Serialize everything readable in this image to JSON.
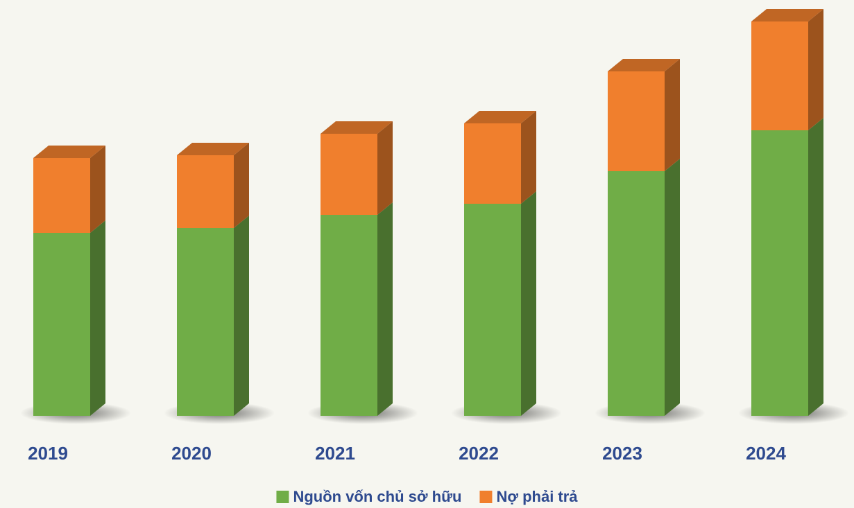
{
  "chart_data": {
    "type": "bar",
    "stacked": true,
    "categories": [
      "2019",
      "2020",
      "2021",
      "2022",
      "2023",
      "2024"
    ],
    "series": [
      {
        "name": "Nguồn vốn chủ sở hữu",
        "color": "#70ad47",
        "values": [
          264,
          271,
          290,
          306,
          353,
          412
        ]
      },
      {
        "name": "Nợ phải trả",
        "color": "#f07f2d",
        "values": [
          108,
          105,
          117,
          116,
          144,
          157
        ]
      }
    ],
    "legend": "bottom"
  }
}
